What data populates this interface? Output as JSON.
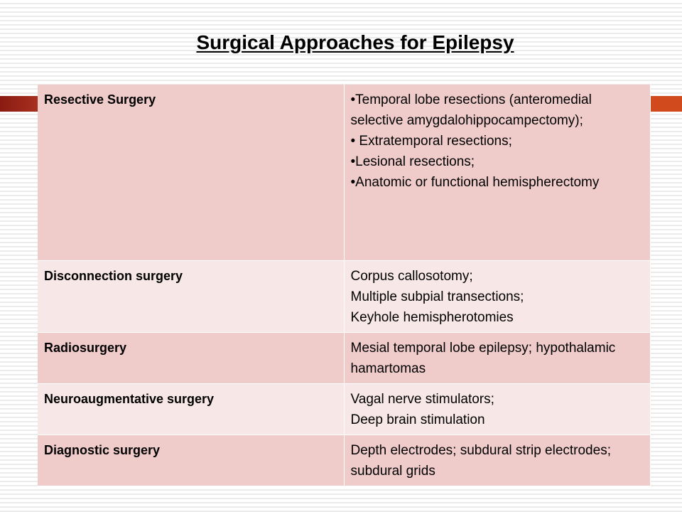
{
  "title": "Surgical Approaches for Epilepsy",
  "rows": [
    {
      "approach": "Resective Surgery",
      "details": [
        "•Temporal lobe resections (anteromedial selective amygdalohippocampectomy);",
        "• Extratemporal resections;",
        "•Lesional resections;",
        "•Anatomic or functional hemispherectomy"
      ]
    },
    {
      "approach": "Disconnection surgery",
      "details": [
        "Corpus callosotomy;",
        "Multiple subpial transections;",
        "Keyhole hemispherotomies"
      ]
    },
    {
      "approach": "Radiosurgery",
      "details": [
        "Mesial temporal lobe epilepsy; hypothalamic hamartomas"
      ]
    },
    {
      "approach": "Neuroaugmentative surgery",
      "details": [
        "Vagal nerve stimulators;",
        "Deep brain stimulation"
      ]
    },
    {
      "approach": "Diagnostic surgery",
      "details": [
        "Depth electrodes; subdural strip electrodes; subdural grids"
      ]
    }
  ]
}
